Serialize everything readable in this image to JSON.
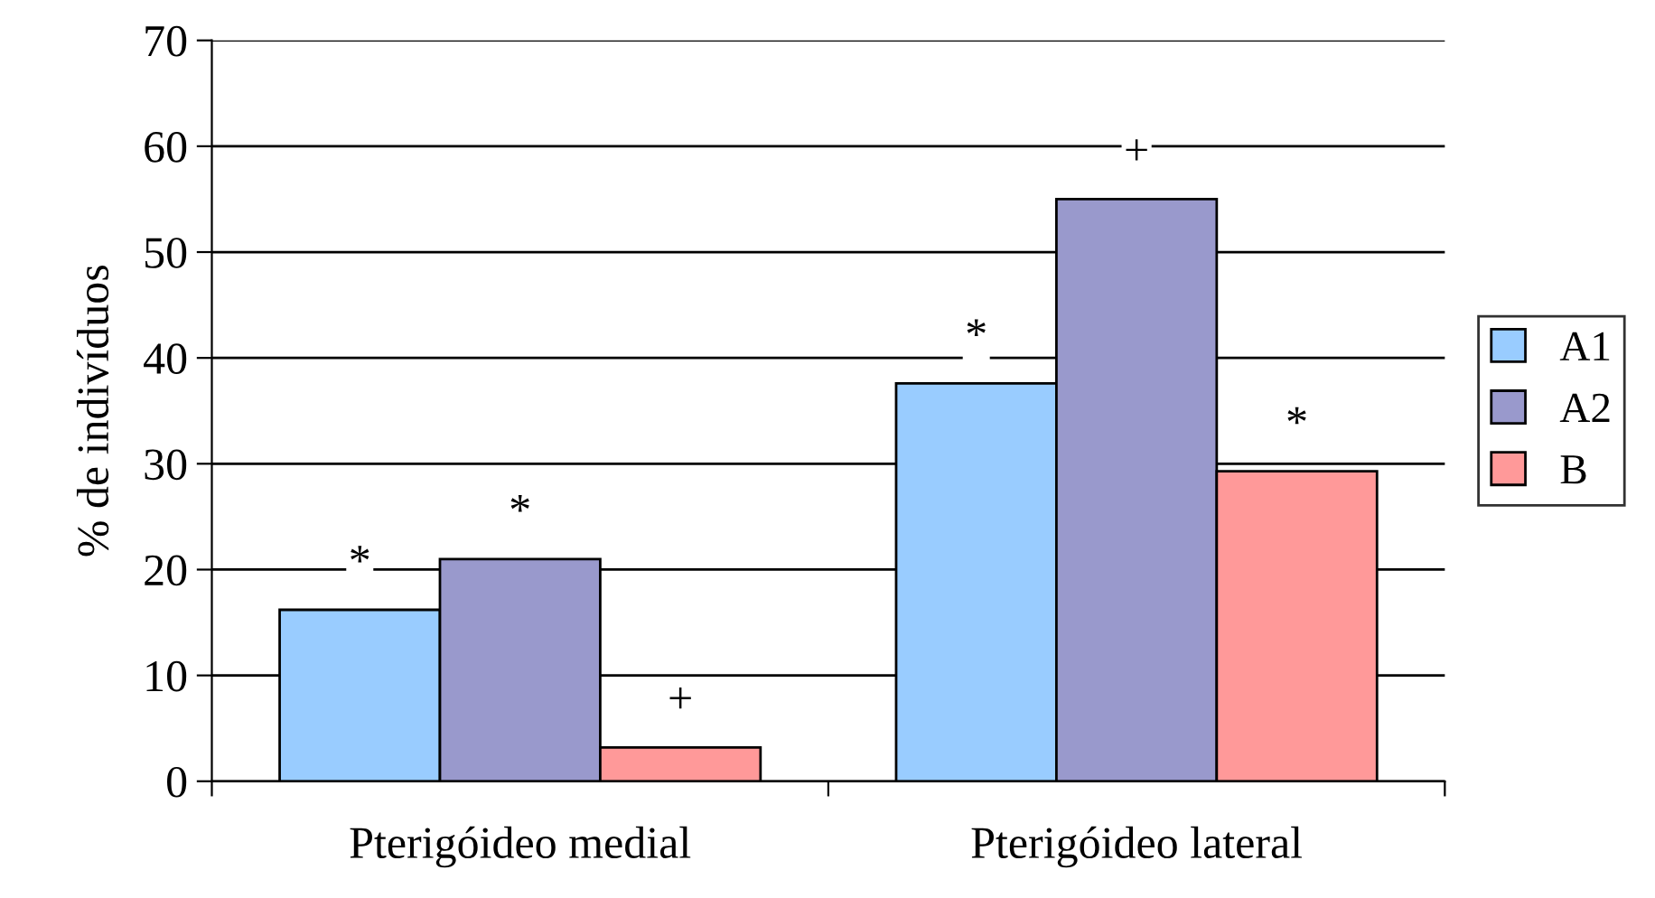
{
  "chart_data": {
    "type": "bar",
    "ylabel": "% de indivíduos",
    "categories": [
      "Pterigóideo medial",
      "Pterigóideo lateral"
    ],
    "series": [
      {
        "name": "A1",
        "color": "#99ccff",
        "values": [
          16.2,
          37.6
        ]
      },
      {
        "name": "A2",
        "color": "#9999cc",
        "values": [
          21.0,
          55.0
        ]
      },
      {
        "name": "B",
        "color": "#ff9999",
        "values": [
          3.2,
          29.3
        ]
      }
    ],
    "ylim": [
      0,
      70
    ],
    "yticks": [
      0,
      10,
      20,
      30,
      40,
      50,
      60,
      70
    ],
    "grid": "y",
    "legend": "right",
    "annotations": [
      "*",
      "*",
      "+",
      "*",
      "+",
      "*"
    ]
  }
}
